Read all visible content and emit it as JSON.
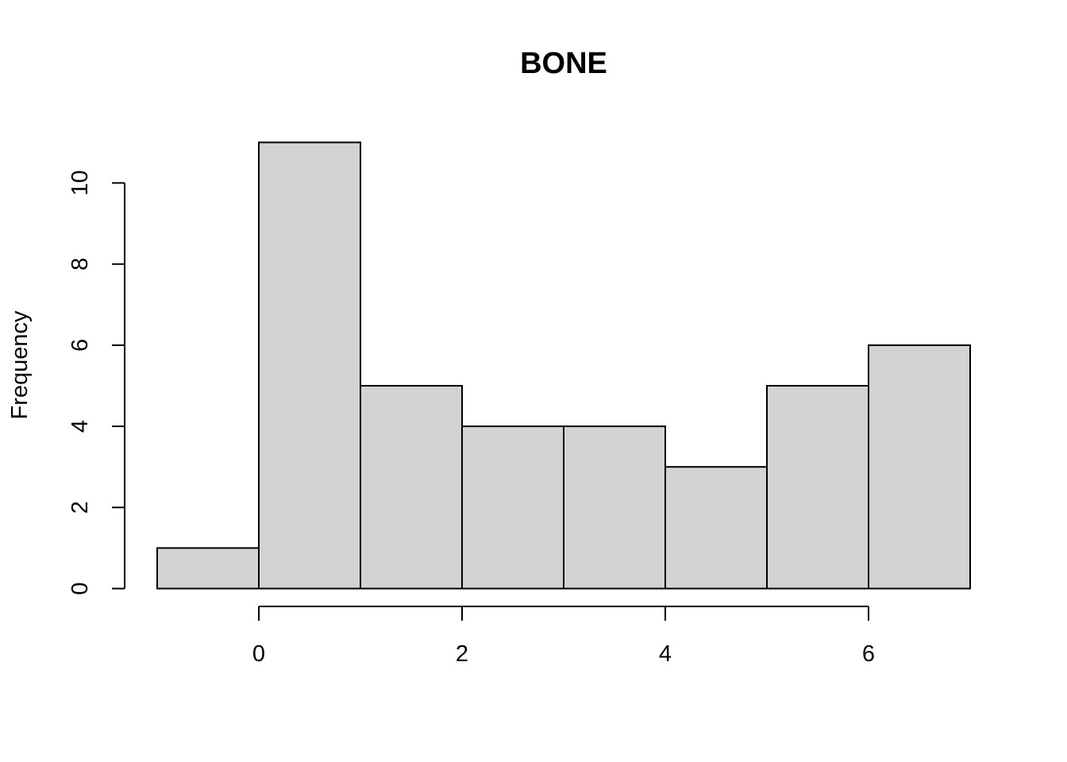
{
  "chart_data": {
    "type": "bar",
    "title": "BONE",
    "xlabel": "",
    "ylabel": "Frequency",
    "bins": [
      {
        "start": -1,
        "end": 0,
        "count": 1
      },
      {
        "start": 0,
        "end": 1,
        "count": 11
      },
      {
        "start": 1,
        "end": 2,
        "count": 5
      },
      {
        "start": 2,
        "end": 3,
        "count": 4
      },
      {
        "start": 3,
        "end": 4,
        "count": 4
      },
      {
        "start": 4,
        "end": 5,
        "count": 3
      },
      {
        "start": 5,
        "end": 6,
        "count": 5
      },
      {
        "start": 6,
        "end": 7,
        "count": 6
      }
    ],
    "x_ticks": [
      0,
      2,
      4,
      6
    ],
    "y_ticks": [
      0,
      2,
      4,
      6,
      8,
      10
    ],
    "xlim": [
      -1,
      7
    ],
    "ylim": [
      0,
      11
    ],
    "grid": false,
    "bar_color": "#d3d3d3"
  }
}
